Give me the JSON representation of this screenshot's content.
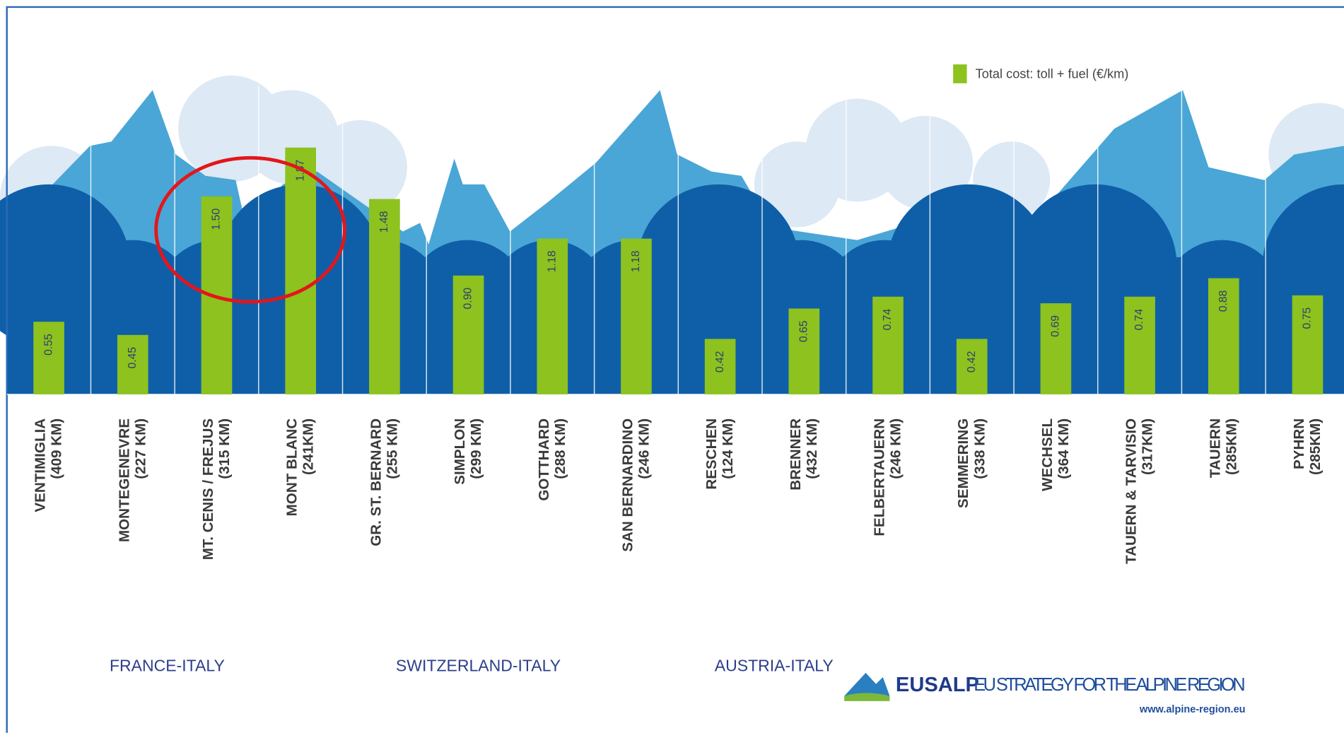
{
  "chart_data": {
    "type": "bar",
    "categories": [
      "VENTIMIGLIA",
      "MONTEGENEVRE",
      "MT. CENIS / FREJUS",
      "MONT BLANC",
      "GR. ST. BERNARD",
      "SIMPLON",
      "GOTTHARD",
      "SAN BERNARDINO",
      "RESCHEN",
      "BRENNER",
      "FELBERTAUERN",
      "SEMMERING",
      "WECHSEL",
      "TAUERN & TARVISIO",
      "TAUERN",
      "PYHRN"
    ],
    "category_lengths": [
      "(409 KM)",
      "(227 KM)",
      "(315 KM)",
      "(241KM)",
      "(255 KM)",
      "(299 KM)",
      "(288 KM)",
      "(246 KM)",
      "(124 KM)",
      "(432 KM)",
      "(246 KM)",
      "(338 KM)",
      "(364 KM)",
      "(317KM)",
      "(285KM)",
      "(285KM)"
    ],
    "series": [
      {
        "name": "Total cost: toll + fuel (€/km)",
        "color": "#8dc21f",
        "values": [
          0.55,
          0.45,
          1.5,
          1.87,
          1.48,
          0.9,
          1.18,
          1.18,
          0.42,
          0.65,
          0.74,
          0.42,
          0.69,
          0.74,
          0.88,
          0.75
        ],
        "value_labels": [
          "0.55",
          "0.45",
          "1.50",
          "1.87",
          "1.48",
          "0.90",
          "1.18",
          "1.18",
          "0.42",
          "0.65",
          "0.74",
          "0.42",
          "0.69",
          "0.74",
          "0.88",
          "0.75"
        ]
      }
    ],
    "group_labels": [
      "FRANCE-ITALY",
      "SWITZERLAND-ITALY",
      "AUSTRIA-ITALY"
    ],
    "legend": "top-right"
  },
  "branding": {
    "name": "EUSALP",
    "tagline": "EU STRATEGY FOR THE ALPINE REGION",
    "url": "www.alpine-region.eu"
  }
}
